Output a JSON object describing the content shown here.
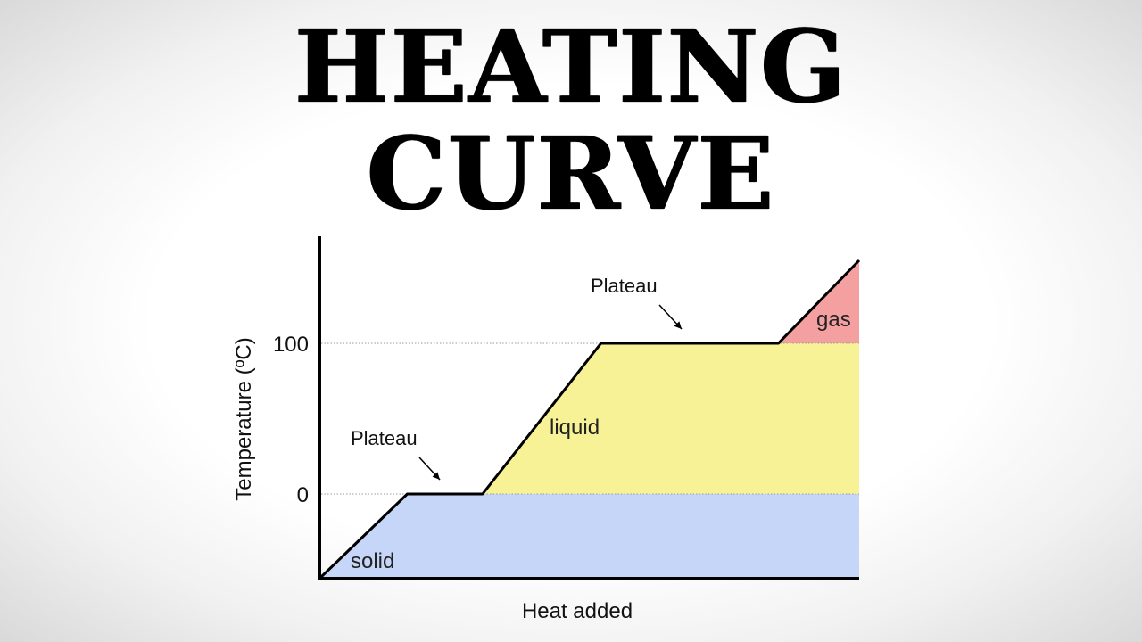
{
  "title": {
    "line1": "HEATING",
    "line2": "CURVE"
  },
  "colors": {
    "solid": "#c6d6f8",
    "liquid": "#f8f296",
    "gas": "#f5a0a0",
    "curve": "#000000",
    "guide": "#9a9a9a"
  },
  "chart_data": {
    "type": "line",
    "title": "HEATING CURVE",
    "xlabel": "Heat added",
    "ylabel": "Temperature (ºC)",
    "yticks": [
      "0",
      "100"
    ],
    "ylim": [
      -55,
      155
    ],
    "xlim": [
      0,
      100
    ],
    "grid": false,
    "series": [
      {
        "x": [
          0,
          16,
          30,
          52,
          85,
          100
        ],
        "y": [
          -55,
          0,
          0,
          100,
          100,
          155
        ]
      }
    ],
    "regions": [
      {
        "label": "solid",
        "y_from": -55,
        "y_to": 0
      },
      {
        "label": "liquid",
        "y_from": 0,
        "y_to": 100
      },
      {
        "label": "gas",
        "y_from": 100,
        "y_to": 155
      }
    ],
    "annotations": [
      {
        "text": "Plateau",
        "x": 23,
        "y": 0
      },
      {
        "text": "Plateau",
        "x": 68,
        "y": 100
      }
    ]
  }
}
